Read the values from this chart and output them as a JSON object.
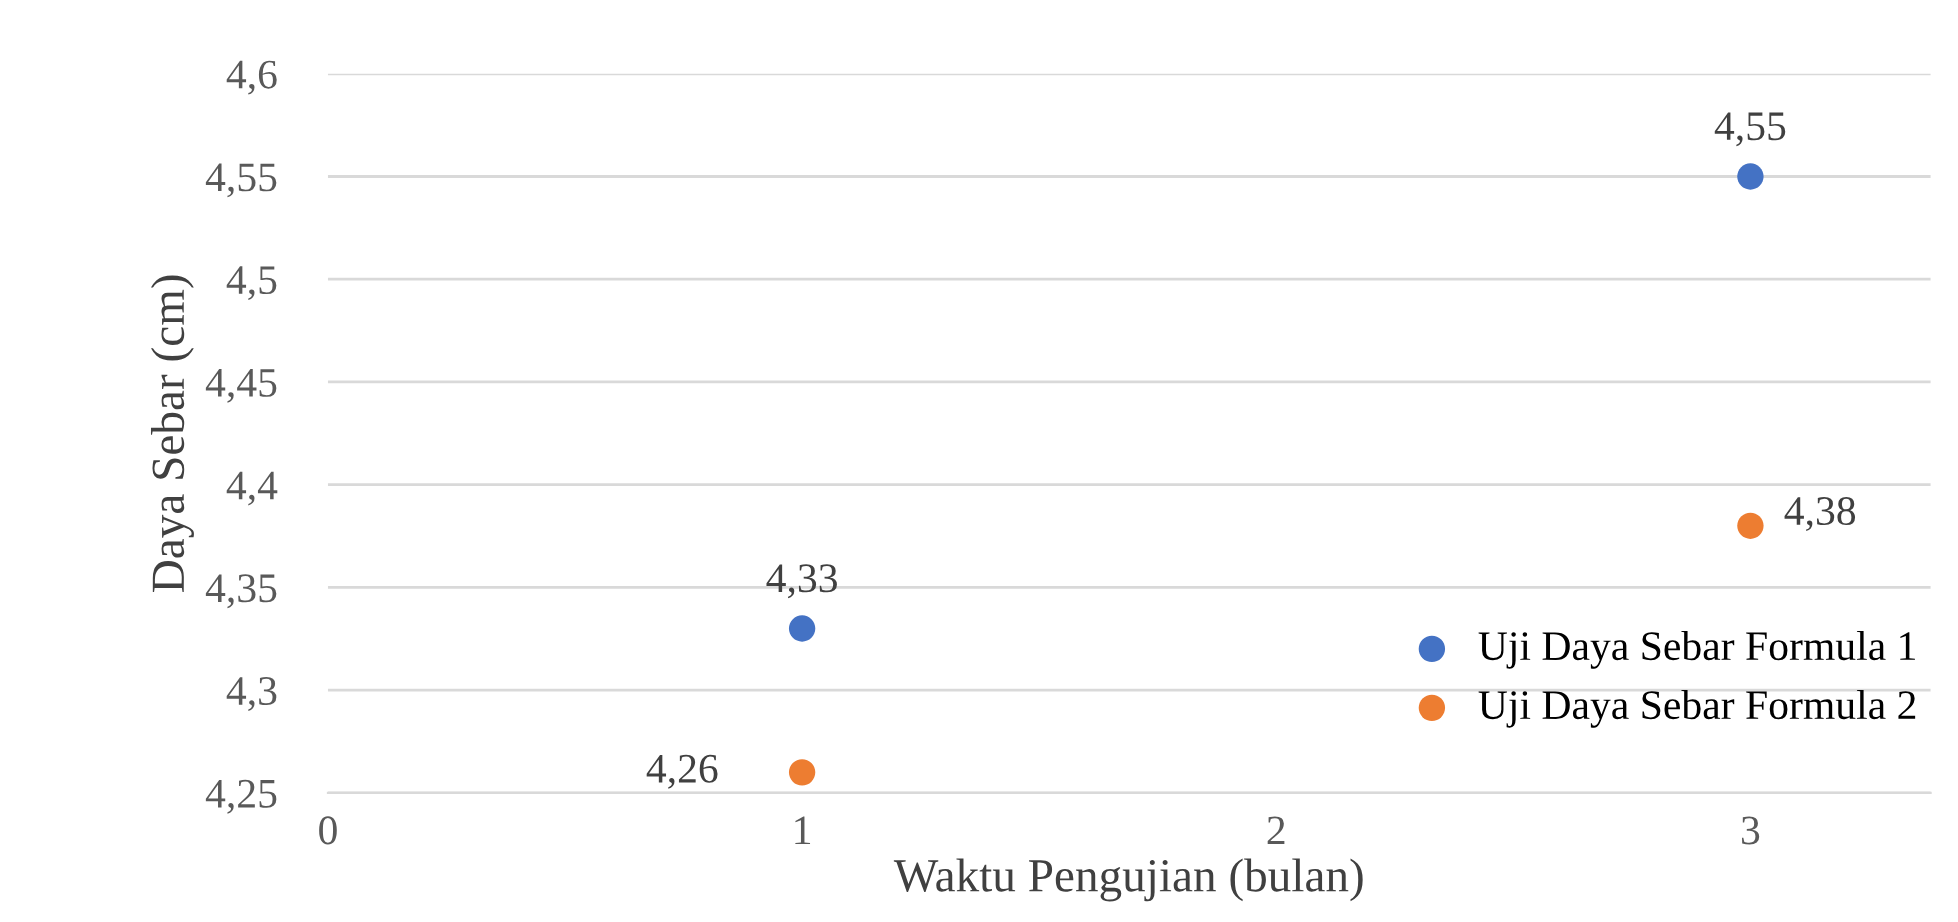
{
  "chart_data": {
    "type": "scatter",
    "xlabel": "Waktu Pengujian (bulan)",
    "ylabel": "Daya Sebar (cm)",
    "x": [
      1,
      3
    ],
    "series": [
      {
        "name": "Uji Daya Sebar Formula 1",
        "color": "#4472c4",
        "values": [
          4.33,
          4.55
        ],
        "value_labels": [
          "4,33",
          "4,55"
        ]
      },
      {
        "name": "Uji Daya Sebar Formula 2",
        "color": "#ed7d31",
        "values": [
          4.26,
          4.38
        ],
        "value_labels": [
          "4,26",
          "4,38"
        ]
      }
    ],
    "xlim": [
      0,
      3.38
    ],
    "xticks": [
      0,
      1,
      2,
      3
    ],
    "ylim": [
      4.25,
      4.6
    ],
    "yticks": [
      {
        "value": 4.25,
        "label": "4,25"
      },
      {
        "value": 4.3,
        "label": "4,3"
      },
      {
        "value": 4.35,
        "label": "4,35"
      },
      {
        "value": 4.4,
        "label": "4,4"
      },
      {
        "value": 4.45,
        "label": "4,45"
      },
      {
        "value": 4.5,
        "label": "4,5"
      },
      {
        "value": 4.55,
        "label": "4,55"
      },
      {
        "value": 4.6,
        "label": "4,6"
      }
    ],
    "grid": "y",
    "legend": "bottom right",
    "marker": "circle"
  }
}
